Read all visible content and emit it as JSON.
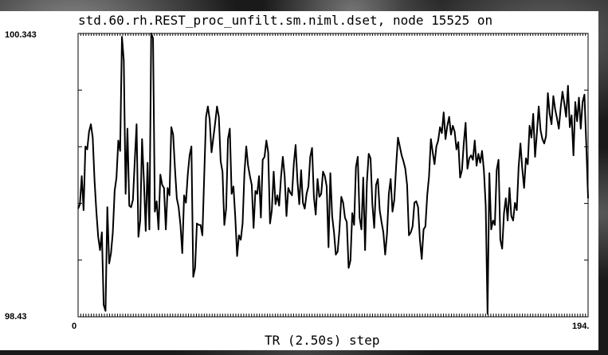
{
  "title": "std.60.rh.REST_proc_unfilt.sm.niml.dset, node 15525 on",
  "y_max_label": "100.343",
  "y_min_label": "98.43",
  "x_min_label": "0",
  "x_max_label": "194.",
  "x_axis_label": "TR (2.50s) step",
  "chart_data": {
    "type": "line",
    "title": "std.60.rh.REST_proc_unfilt.sm.niml.dset, node 15525 on",
    "xlabel": "TR (2.50s) step",
    "ylabel": "",
    "xlim": [
      0,
      194
    ],
    "ylim": [
      98.43,
      100.343
    ],
    "grid": false,
    "series": [
      {
        "values": [
          99.16,
          99.19,
          99.38,
          99.15,
          99.58,
          99.56,
          99.68,
          99.73,
          99.64,
          99.35,
          99.14,
          98.97,
          98.88,
          99.0,
          98.51,
          98.47,
          99.17,
          98.79,
          98.86,
          99.0,
          99.28,
          99.37,
          99.62,
          99.55,
          100.32,
          100.16,
          99.26,
          99.7,
          99.18,
          99.17,
          99.22,
          99.48,
          99.73,
          98.97,
          99.08,
          99.63,
          99.35,
          99.01,
          99.47,
          99.02,
          100.35,
          100.31,
          99.14,
          99.21,
          99.02,
          99.39,
          99.32,
          99.3,
          99.02,
          99.3,
          99.25,
          99.71,
          99.66,
          99.43,
          99.23,
          99.17,
          99.05,
          98.86,
          99.25,
          99.2,
          99.39,
          99.52,
          99.58,
          98.7,
          98.76,
          99.06,
          99.05,
          99.05,
          98.98,
          99.38,
          99.78,
          99.85,
          99.76,
          99.54,
          99.64,
          99.74,
          99.85,
          99.78,
          99.48,
          99.41,
          99.05,
          99.16,
          99.63,
          99.7,
          99.26,
          99.31,
          99.1,
          98.84,
          98.98,
          98.95,
          99.06,
          99.4,
          99.58,
          99.45,
          99.38,
          99.32,
          99.03,
          99.28,
          99.26,
          99.38,
          99.1,
          99.49,
          99.51,
          99.62,
          99.54,
          99.06,
          99.15,
          99.41,
          99.19,
          99.25,
          99.18,
          99.37,
          99.51,
          99.38,
          99.11,
          99.3,
          99.27,
          99.25,
          99.46,
          99.59,
          99.35,
          99.19,
          99.42,
          99.2,
          99.16,
          99.26,
          99.31,
          99.51,
          99.57,
          99.24,
          99.12,
          99.36,
          99.24,
          99.26,
          99.41,
          99.38,
          99.31,
          98.9,
          99.4,
          99.11,
          99.0,
          98.85,
          98.87,
          99.02,
          99.24,
          99.2,
          99.1,
          99.07,
          98.76,
          98.81,
          99.13,
          99.05,
          99.44,
          99.51,
          99.1,
          99.02,
          99.37,
          98.88,
          99.34,
          99.53,
          99.5,
          99.19,
          99.03,
          99.32,
          99.36,
          99.15,
          99.07,
          99.0,
          98.85,
          98.99,
          99.26,
          99.36,
          99.14,
          99.22,
          99.45,
          99.64,
          99.58,
          99.52,
          99.48,
          99.43,
          99.32,
          98.98,
          99.0,
          99.04,
          99.2,
          99.21,
          99.17,
          98.95,
          98.82,
          99.02,
          99.04,
          99.25,
          99.38,
          99.63,
          99.54,
          99.46,
          99.58,
          99.62,
          99.71,
          99.67,
          99.81,
          99.63,
          99.72,
          99.78,
          99.66,
          99.72,
          99.68,
          99.56,
          99.61,
          99.37,
          99.42,
          99.6,
          99.74,
          99.43,
          99.5,
          99.52,
          99.49,
          99.62,
          99.45,
          99.53,
          99.47,
          99.55,
          99.42,
          99.18,
          98.45,
          99.4,
          99.02,
          99.08,
          99.05,
          99.42,
          99.49,
          98.95,
          98.89,
          99.13,
          99.23,
          99.08,
          99.3,
          99.11,
          99.08,
          99.2,
          99.15,
          99.44,
          99.6,
          99.43,
          99.3,
          99.5,
          99.46,
          99.72,
          99.64,
          99.8,
          99.51,
          99.67,
          99.85,
          99.69,
          99.63,
          99.6,
          99.65,
          99.94,
          99.8,
          99.73,
          99.92,
          99.83,
          99.77,
          99.7,
          99.84,
          99.95,
          99.87,
          99.78,
          99.99,
          99.71,
          99.79,
          99.52,
          99.88,
          99.75,
          99.91,
          99.7,
          99.88,
          99.93,
          99.6,
          99.23
        ]
      }
    ]
  }
}
